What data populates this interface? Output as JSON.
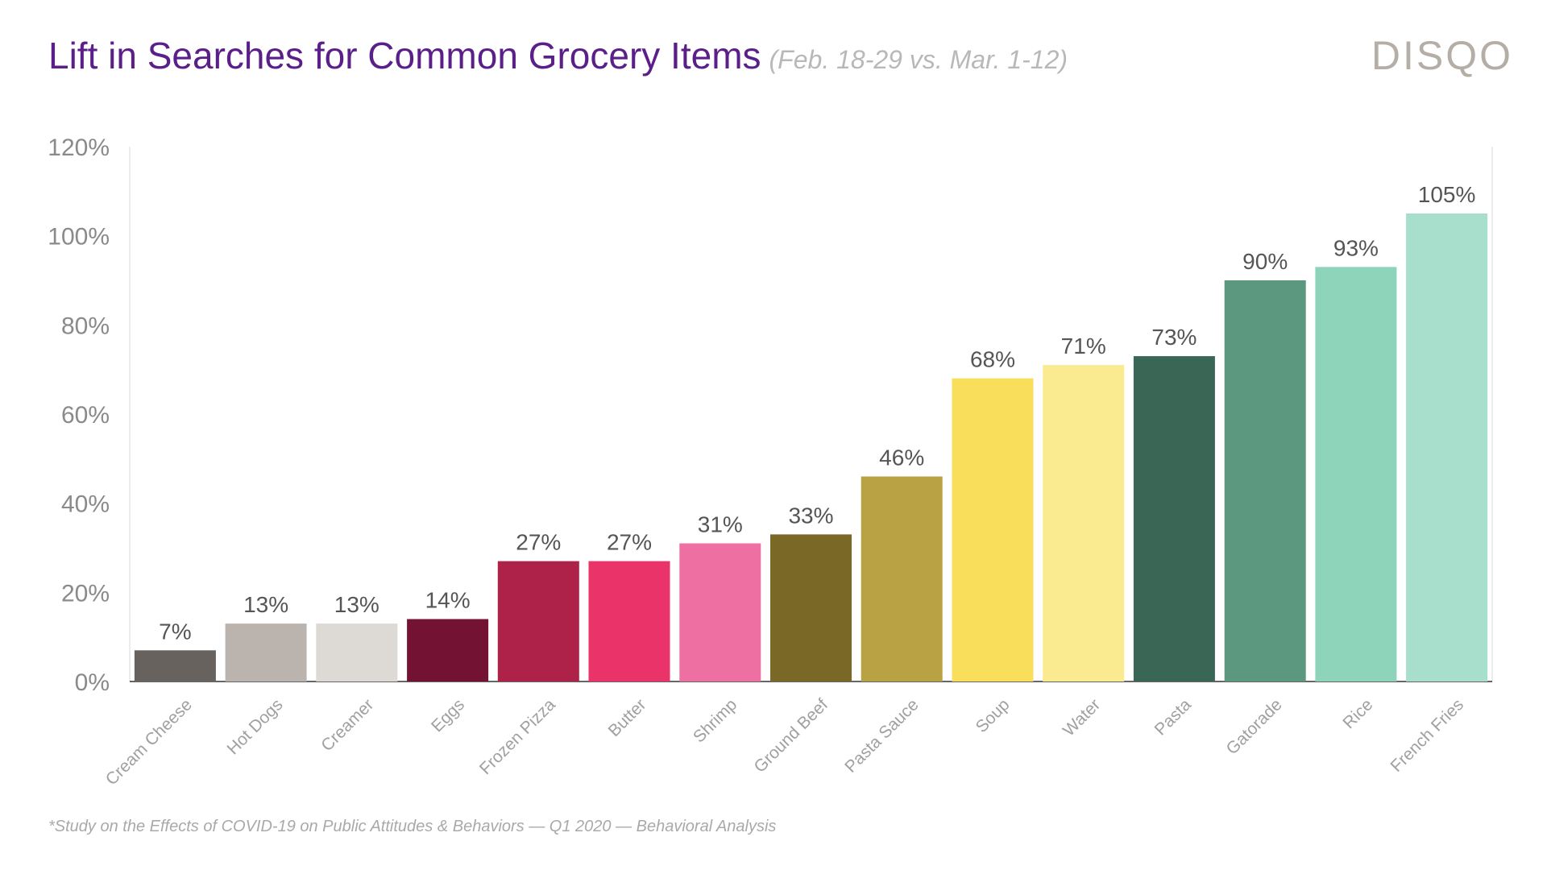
{
  "header": {
    "title": "Lift in Searches for Common Grocery Items",
    "subtitle": "(Feb. 18-29 vs. Mar. 1-12)",
    "brand": "DISQO"
  },
  "footnote": "*Study on the Effects of COVID-19 on Public Attitudes & Behaviors — Q1 2020 — Behavioral Analysis",
  "chart_data": {
    "type": "bar",
    "title": "Lift in Searches for Common Grocery Items",
    "xlabel": "",
    "ylabel": "",
    "ylim": [
      0,
      120
    ],
    "yticks": [
      0,
      20,
      40,
      60,
      80,
      100,
      120
    ],
    "ytick_labels": [
      "0%",
      "20%",
      "40%",
      "60%",
      "80%",
      "100%",
      "120%"
    ],
    "grid": false,
    "legend": "none",
    "categories": [
      "Cream Cheese",
      "Hot Dogs",
      "Creamer",
      "Eggs",
      "Frozen Pizza",
      "Butter",
      "Shrimp",
      "Ground Beef",
      "Pasta Sauce",
      "Soup",
      "Water",
      "Pasta",
      "Gatorade",
      "Rice",
      "French Fries"
    ],
    "values": [
      7,
      13,
      13,
      14,
      27,
      27,
      31,
      33,
      46,
      68,
      71,
      73,
      90,
      93,
      105
    ],
    "value_labels": [
      "7%",
      "13%",
      "13%",
      "14%",
      "27%",
      "27%",
      "31%",
      "33%",
      "46%",
      "68%",
      "71%",
      "73%",
      "90%",
      "93%",
      "105%"
    ],
    "colors": [
      "#67625e",
      "#bbb3ad",
      "#ddd9d5",
      "#741233",
      "#ae2149",
      "#e93369",
      "#ee6fa2",
      "#7a6826",
      "#b9a243",
      "#f8de5a",
      "#fbeb90",
      "#3a6655",
      "#5b987f",
      "#8ed4bb",
      "#a8dfcc"
    ]
  }
}
